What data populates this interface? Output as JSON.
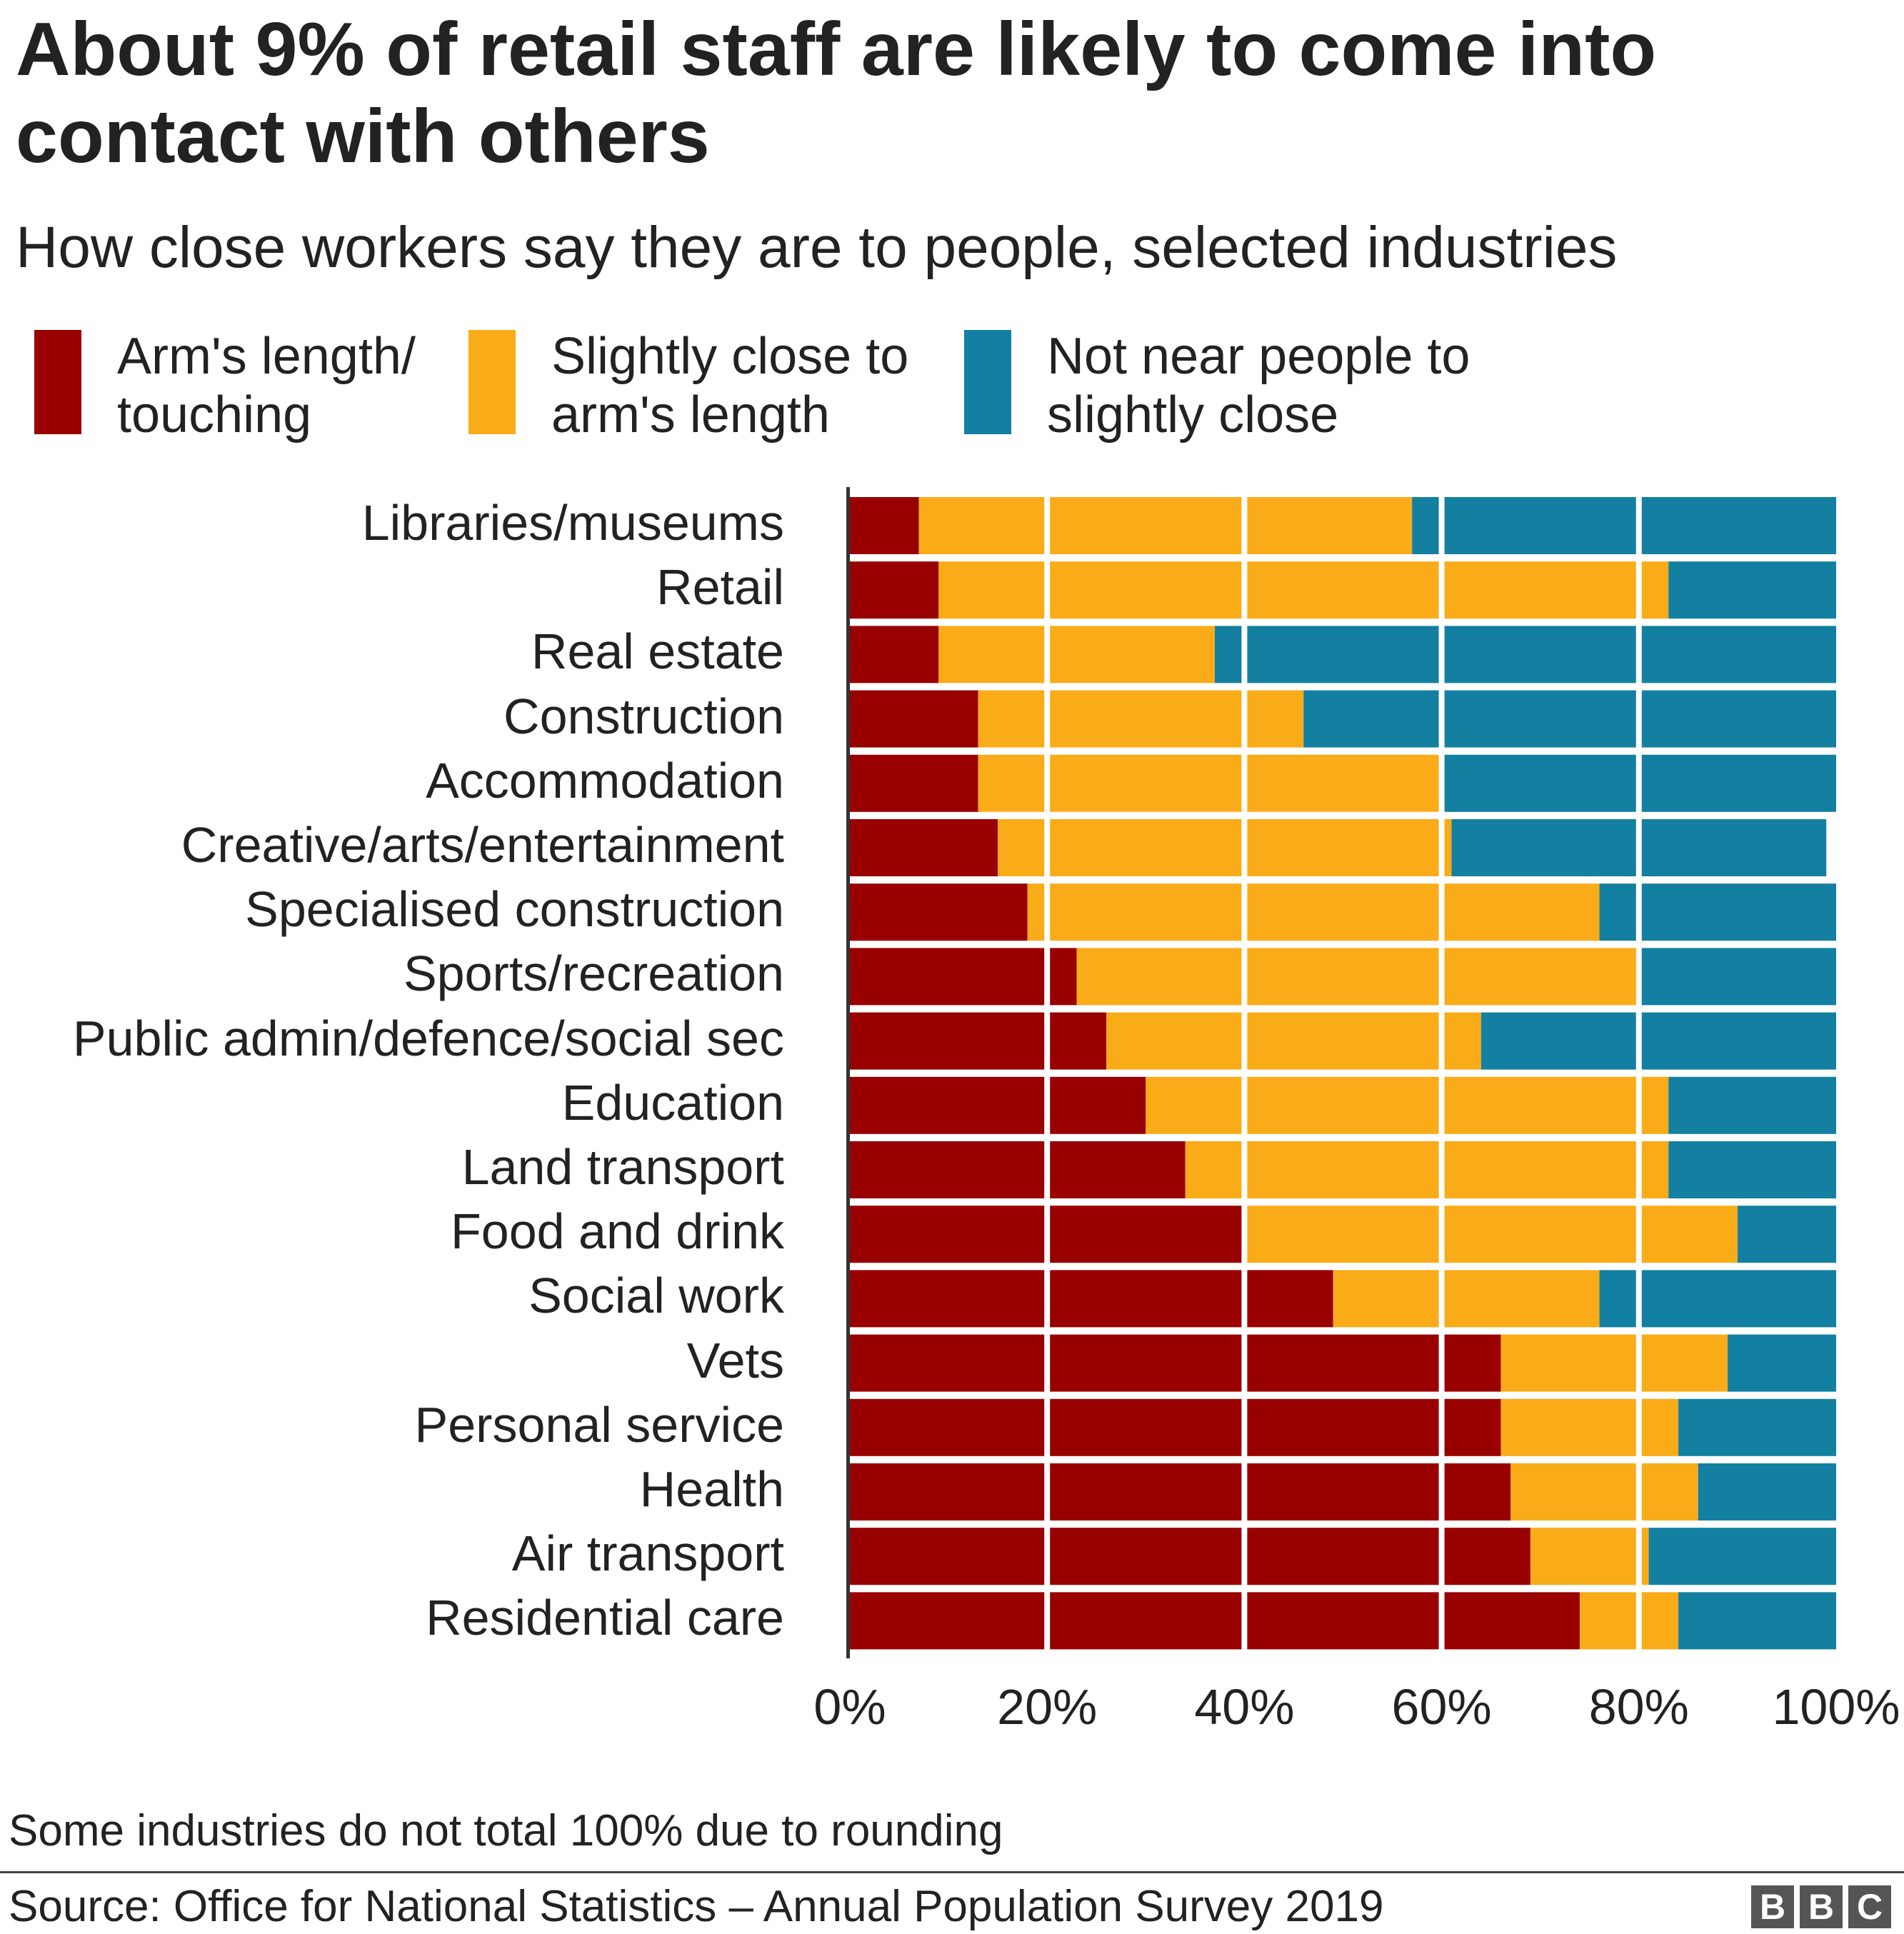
{
  "chart_data": {
    "type": "bar",
    "orientation": "horizontal",
    "stacked": true,
    "title": "About 9% of retail staff are likely to come into contact with others",
    "subtitle": "How close workers say they are to people, selected industries",
    "categories": [
      "Libraries/museums",
      "Retail",
      "Real estate",
      "Construction",
      "Accommodation",
      "Creative/arts/entertainment",
      "Specialised construction",
      "Sports/recreation",
      "Public admin/defence/social sec",
      "Education",
      "Land transport",
      "Food and drink",
      "Social work",
      "Vets",
      "Personal service",
      "Health",
      "Air transport",
      "Residential care"
    ],
    "series": [
      {
        "name": "Arm's length/ touching",
        "color": "#990000",
        "values": [
          7,
          9,
          9,
          13,
          13,
          15,
          18,
          23,
          26,
          30,
          34,
          40,
          49,
          66,
          66,
          67,
          69,
          74
        ]
      },
      {
        "name": "Slightly close to arm's length",
        "color": "#FAAB18",
        "values": [
          50,
          74,
          28,
          33,
          47,
          46,
          58,
          57,
          38,
          53,
          49,
          50,
          27,
          23,
          18,
          19,
          12,
          10
        ]
      },
      {
        "name": "Not near people to slightly close",
        "color": "#1380A1",
        "values": [
          43,
          17,
          63,
          54,
          40,
          38,
          24,
          20,
          36,
          17,
          17,
          10,
          24,
          11,
          16,
          14,
          19,
          16
        ]
      }
    ],
    "xlim": [
      0,
      100
    ],
    "xticks": [
      "0%",
      "20%",
      "40%",
      "60%",
      "80%",
      "100%"
    ],
    "grid": true,
    "legend_placement": "top",
    "note": "Some industries do not total 100% due to rounding",
    "source": "Source: Office for National Statistics – Annual Population Survey 2019"
  },
  "logo": "BBC"
}
